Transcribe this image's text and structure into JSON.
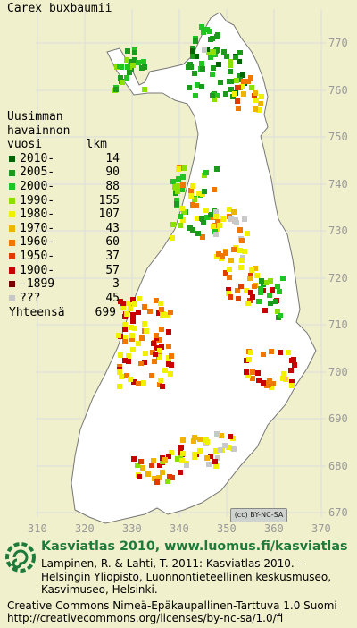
{
  "species": "Carex buxbaumii",
  "legend": {
    "heading": [
      "Uusimman",
      "havainnon"
    ],
    "col_header": {
      "left": "vuosi",
      "right": "lkm"
    },
    "items": [
      {
        "label": "2010-",
        "count": "14",
        "color": "#006400"
      },
      {
        "label": "2005-",
        "count": "90",
        "color": "#1c9a1c"
      },
      {
        "label": "2000-",
        "count": "88",
        "color": "#22c422"
      },
      {
        "label": "1990-",
        "count": "155",
        "color": "#8ae000"
      },
      {
        "label": "1980-",
        "count": "107",
        "color": "#f0f000"
      },
      {
        "label": "1970-",
        "count": "43",
        "color": "#f0b400"
      },
      {
        "label": "1960-",
        "count": "60",
        "color": "#f07800"
      },
      {
        "label": "1950-",
        "count": "37",
        "color": "#e03c00"
      },
      {
        "label": "1900-",
        "count": "57",
        "color": "#c80000"
      },
      {
        "label": "-1899",
        "count": "3",
        "color": "#780000"
      },
      {
        "label": "???",
        "count": "45",
        "color": "#c8c8c8"
      }
    ],
    "total_label": "Yhteensä",
    "total_count": "699"
  },
  "grid_labels": {
    "north": [
      "770",
      "760",
      "750",
      "740",
      "730",
      "720",
      "710",
      "700",
      "690",
      "680",
      "670"
    ],
    "east": [
      "310",
      "320",
      "330",
      "340",
      "350",
      "360",
      "370"
    ]
  },
  "cc_badge": "(cc) BY-NC-SA",
  "footer": {
    "title": "Kasviatlas 2010, www.luomus.fi/kasviatlas",
    "citation": [
      "Lampinen, R. & Lahti, T. 2011: Kasviatlas 2010. –",
      "Helsingin Yliopisto, Luonnontieteellinen keskusmuseo,",
      "Kasvimuseo, Helsinki."
    ],
    "license": [
      "Creative Commons Nimeä-Epäkaupallinen-Tarttuva 1.0 Suomi",
      "http://creativecommons.org/licenses/by-nc-sa/1.0/fi"
    ]
  },
  "colors": {
    "land": "#ffffff",
    "sea": "#f0f0cc",
    "grid": "#dddddd",
    "title_green": "#1e7a3a"
  }
}
